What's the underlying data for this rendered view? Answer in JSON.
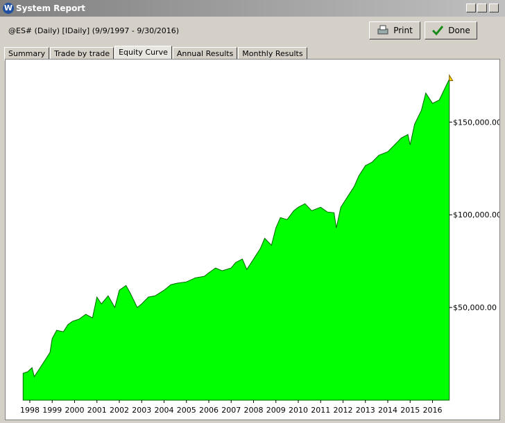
{
  "window": {
    "app_icon": "W",
    "title": "System Report"
  },
  "header": {
    "symbol": "@ES# (Daily) [IDaily]  (9/9/1997 - 9/30/2016)"
  },
  "buttons": {
    "print": "Print",
    "done": "Done"
  },
  "tabs": [
    "Summary",
    "Trade by trade",
    "Equity Curve",
    "Annual Results",
    "Monthly Results"
  ],
  "chart_data": {
    "type": "area",
    "color": "#00ff00",
    "line_color": "#006400",
    "x": [
      1997.7,
      1997.9,
      1998.1,
      1998.2,
      1998.4,
      1998.7,
      1998.9,
      1999.0,
      1999.2,
      1999.5,
      1999.7,
      1999.9,
      2000.2,
      2000.5,
      2000.8,
      2001.0,
      2001.2,
      2001.5,
      2001.8,
      2002.0,
      2002.3,
      2002.5,
      2002.8,
      2003.0,
      2003.3,
      2003.6,
      2004.0,
      2004.3,
      2004.6,
      2005.0,
      2005.4,
      2005.8,
      2006.0,
      2006.3,
      2006.6,
      2007.0,
      2007.2,
      2007.5,
      2007.7,
      2008.0,
      2008.3,
      2008.5,
      2008.8,
      2009.0,
      2009.2,
      2009.5,
      2009.8,
      2010.0,
      2010.3,
      2010.6,
      2011.0,
      2011.3,
      2011.6,
      2011.7,
      2011.9,
      2012.2,
      2012.5,
      2012.7,
      2013.0,
      2013.3,
      2013.6,
      2014.0,
      2014.3,
      2014.6,
      2014.9,
      2015.0,
      2015.2,
      2015.5,
      2015.7,
      2016.0,
      2016.3,
      2016.6,
      2016.75
    ],
    "values": [
      14500,
      15300,
      17500,
      12700,
      16400,
      22000,
      25700,
      33200,
      37700,
      36900,
      40700,
      42500,
      43700,
      46300,
      44400,
      55600,
      51900,
      56300,
      50000,
      59300,
      61900,
      57500,
      50000,
      51900,
      55600,
      56300,
      59300,
      62300,
      63100,
      63800,
      66000,
      66800,
      68700,
      71300,
      69800,
      71300,
      74300,
      76100,
      70500,
      76100,
      81700,
      87300,
      83600,
      92900,
      98500,
      97400,
      102200,
      104100,
      106000,
      102200,
      104100,
      101500,
      101100,
      92900,
      104100,
      109700,
      115300,
      120900,
      126500,
      128400,
      132100,
      134000,
      137700,
      141400,
      143300,
      137700,
      148900,
      156300,
      165700,
      160100,
      161900,
      169400,
      173100
    ],
    "xlim": [
      1997.69,
      2016.76
    ],
    "xticks": [
      1998,
      1999,
      2000,
      2001,
      2002,
      2003,
      2004,
      2005,
      2006,
      2007,
      2008,
      2009,
      2010,
      2011,
      2012,
      2013,
      2014,
      2015,
      2016
    ],
    "ylim": [
      0,
      183000
    ],
    "yticks": [
      {
        "value": 50000,
        "label": "$50,000.00"
      },
      {
        "value": 100000,
        "label": "$100,000.00"
      },
      {
        "value": 150000,
        "label": "$150,000.00"
      }
    ]
  }
}
